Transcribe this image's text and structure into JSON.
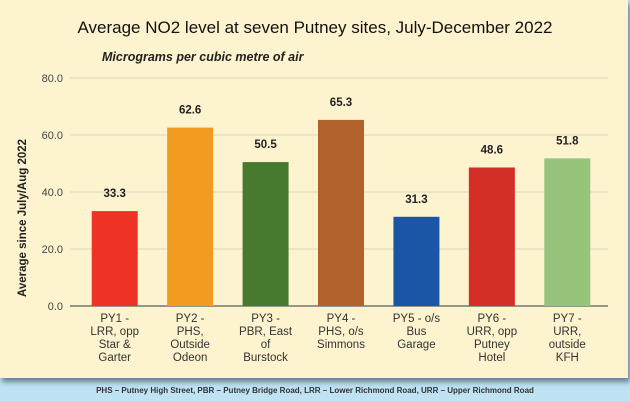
{
  "chart_data": {
    "type": "bar",
    "title": "Average NO2 level at seven Putney sites, July-December 2022",
    "subtitle": "Micrograms per cubic metre of air",
    "ylabel": "Average since July/Aug 2022",
    "xlabel": "",
    "ylim": [
      0,
      80
    ],
    "yticks": [
      "0.0",
      "20.0",
      "40.0",
      "60.0",
      "80.0"
    ],
    "grid": true,
    "categories": [
      [
        "PY1 -",
        "LRR, opp",
        "Star &",
        "Garter"
      ],
      [
        "PY2 -",
        "PHS,",
        "Outside",
        "Odeon"
      ],
      [
        "PY3 -",
        "PBR, East",
        "of",
        "Burstock"
      ],
      [
        "PY4 -",
        "PHS, o/s",
        "Simmons"
      ],
      [
        "PY5 - o/s",
        "Bus",
        "Garage"
      ],
      [
        "PY6 -",
        "URR, opp",
        "Putney",
        "Hotel"
      ],
      [
        "PY7 -",
        "URR,",
        "outside",
        "KFH"
      ]
    ],
    "values": [
      33.3,
      62.6,
      50.5,
      65.3,
      31.3,
      48.6,
      51.8
    ],
    "value_labels": [
      "33.3",
      "62.6",
      "50.5",
      "65.3",
      "31.3",
      "48.6",
      "51.8"
    ],
    "colors": [
      "#ee3224",
      "#f29b21",
      "#477a2e",
      "#b1612a",
      "#1b55a6",
      "#d32f27",
      "#95c47a"
    ]
  },
  "footnote": "PHS – Putney High Street, PBR – Putney Bridge Road, LRR – Lower Richmond Road, URR – Upper Richmond Road"
}
